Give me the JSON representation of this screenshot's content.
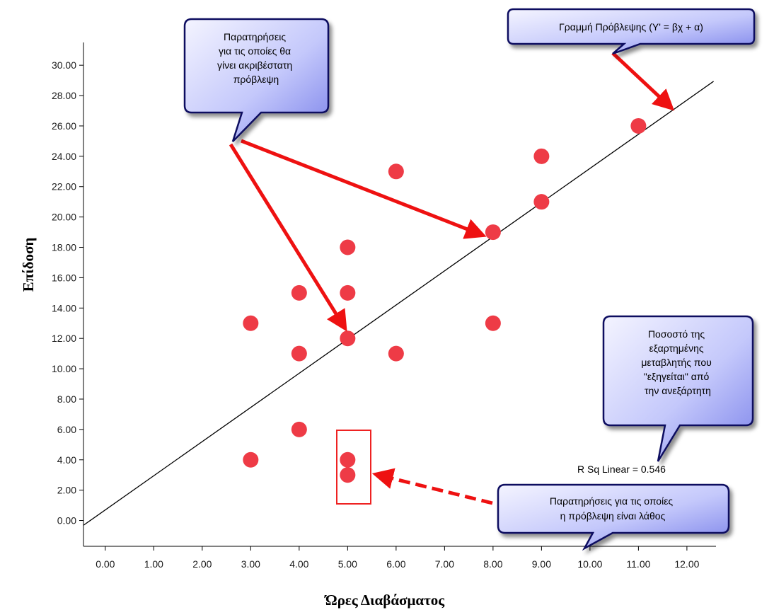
{
  "chart_data": {
    "type": "scatter",
    "xlabel": "Ώρες Διαβάσματος",
    "ylabel": "Επίδοση",
    "xlim": [
      -0.45,
      12.6
    ],
    "ylim": [
      -1.7,
      31.5
    ],
    "xticks": [
      "0.00",
      "1.00",
      "2.00",
      "3.00",
      "4.00",
      "5.00",
      "6.00",
      "7.00",
      "8.00",
      "9.00",
      "10.00",
      "11.00",
      "12.00"
    ],
    "yticks": [
      "0.00",
      "2.00",
      "4.00",
      "6.00",
      "8.00",
      "10.00",
      "12.00",
      "14.00",
      "16.00",
      "18.00",
      "20.00",
      "22.00",
      "24.00",
      "26.00",
      "28.00",
      "30.00"
    ],
    "grid": false,
    "points": [
      {
        "x": 3,
        "y": 13
      },
      {
        "x": 3,
        "y": 4
      },
      {
        "x": 4,
        "y": 15
      },
      {
        "x": 4,
        "y": 11
      },
      {
        "x": 4,
        "y": 6
      },
      {
        "x": 5,
        "y": 18
      },
      {
        "x": 5,
        "y": 15
      },
      {
        "x": 5,
        "y": 12
      },
      {
        "x": 5,
        "y": 4
      },
      {
        "x": 5,
        "y": 3
      },
      {
        "x": 6,
        "y": 23
      },
      {
        "x": 6,
        "y": 11
      },
      {
        "x": 8,
        "y": 19
      },
      {
        "x": 8,
        "y": 13
      },
      {
        "x": 9,
        "y": 24
      },
      {
        "x": 9,
        "y": 21
      },
      {
        "x": 11,
        "y": 26
      }
    ],
    "fit_line": {
      "intercept": 0.7,
      "slope": 2.25
    },
    "r_squared_label": "R Sq Linear = 0.546",
    "point_color": "#ee3b46",
    "annotations": {
      "best_prediction": [
        "Παρατηρήσεις",
        "για τις οποίες θα",
        "γίνει ακριβέστατη",
        "πρόβλεψη"
      ],
      "prediction_line": [
        "Γραμμή Πρόβλεψης (Y' = βχ + α)"
      ],
      "explained_variance": [
        "Ποσοστό της",
        "εξαρτημένης",
        "μεταβλητής που",
        "\"εξηγείται\" από",
        "την ανεξάρτητη"
      ],
      "wrong_prediction": [
        "Παρατηρήσεις για τις οποίες",
        "η πρόβλεψη είναι λάθος"
      ]
    }
  },
  "colors": {
    "callout_fill_light": "#f4f4ff",
    "callout_fill_dark": "#7b82ea",
    "callout_border": "#101060",
    "arrow": "#ee1111",
    "box": "#ee2222"
  }
}
